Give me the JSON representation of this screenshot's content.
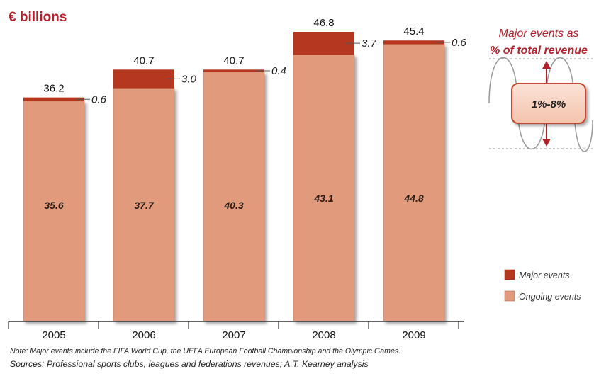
{
  "unit_label": "€ billions",
  "side_panel": {
    "title_line1": "Major events as",
    "title_line2": "% of total revenue",
    "range_text": "1%-8%"
  },
  "notes": {
    "note": "Note: Major events include the FIFA World Cup, the UEFA European Football Championship and the Olympic Games.",
    "sources": "Sources: Professional sports clubs, leagues and federations revenues; A.T. Kearney analysis"
  },
  "colors": {
    "ongoing": "#E29A7C",
    "major": "#B5371F",
    "accent_red": "#B4202A"
  },
  "chart_data": {
    "type": "bar",
    "stacked": true,
    "categories": [
      "2005",
      "2006",
      "2007",
      "2008",
      "2009"
    ],
    "series": [
      {
        "name": "Ongoing events",
        "values": [
          35.6,
          37.7,
          40.3,
          43.1,
          44.8
        ]
      },
      {
        "name": "Major events",
        "values": [
          0.6,
          3.0,
          0.4,
          3.7,
          0.6
        ]
      }
    ],
    "totals": [
      "36.2",
      "40.7",
      "40.7",
      "46.8",
      "45.4"
    ],
    "ongoing_labels": [
      "35.6",
      "37.7",
      "40.3",
      "43.1",
      "44.8"
    ],
    "major_labels": [
      "0.6",
      "3.0",
      "0.4",
      "3.7",
      "0.6"
    ],
    "legend": [
      "Major events",
      "Ongoing events"
    ],
    "legend_position": "bottom-right",
    "ylim": [
      0,
      46.8
    ],
    "grid": false
  }
}
